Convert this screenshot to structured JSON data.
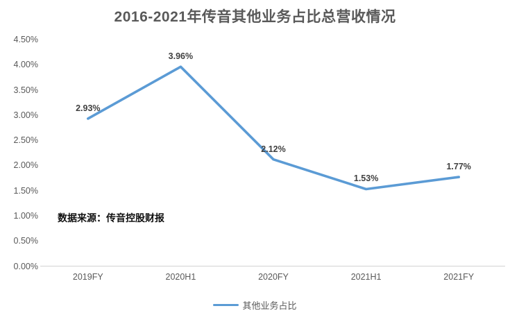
{
  "title": "2016-2021年传音其他业务占比总营收情况",
  "source_note": "数据来源：传音控股财报",
  "legend": {
    "label": "其他业务占比"
  },
  "colors": {
    "line": "#5B9BD5",
    "axis_line": "#D9D9D9",
    "title_text": "#595959",
    "tick_text": "#595959",
    "data_label_text": "#404040"
  },
  "chart_data": {
    "type": "line",
    "title": "2016-2021年传音其他业务占比总营收情况",
    "categories": [
      "2019FY",
      "2020H1",
      "2020FY",
      "2021H1",
      "2021FY"
    ],
    "series": [
      {
        "name": "其他业务占比",
        "values": [
          2.93,
          3.96,
          2.12,
          1.53,
          1.77
        ]
      }
    ],
    "data_labels": [
      "2.93%",
      "3.96%",
      "2.12%",
      "1.53%",
      "1.77%"
    ],
    "xlabel": "",
    "ylabel": "",
    "ylim": [
      0,
      4.5
    ],
    "ytick_step": 0.5,
    "ytick_labels": [
      "0.00%",
      "0.50%",
      "1.00%",
      "1.50%",
      "2.00%",
      "2.50%",
      "3.00%",
      "3.50%",
      "4.00%",
      "4.50%"
    ],
    "grid": false,
    "legend_position": "bottom",
    "annotation": "数据来源：传音控股财报"
  }
}
